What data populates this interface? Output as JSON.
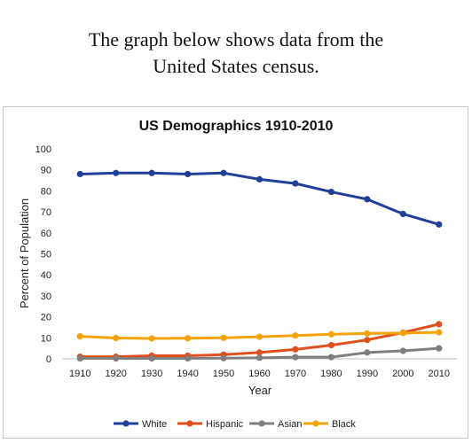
{
  "caption": {
    "line1": "The graph below shows data from the",
    "line2": "United States census."
  },
  "chart_data": {
    "type": "line",
    "title": "US Demographics 1910-2010",
    "xlabel": "Year",
    "ylabel": "Percent of Population",
    "categories": [
      "1910",
      "1920",
      "1930",
      "1940",
      "1950",
      "1960",
      "1970",
      "1980",
      "1990",
      "2000",
      "2010"
    ],
    "ylim": [
      0,
      100
    ],
    "yticks": [
      0,
      10,
      20,
      30,
      40,
      50,
      60,
      70,
      80,
      90,
      100
    ],
    "grid": false,
    "legend_position": "bottom",
    "series": [
      {
        "name": "White",
        "color": "#1f3f9a",
        "values": [
          88,
          88.5,
          88.5,
          88,
          88.5,
          85.5,
          83.5,
          79.5,
          76,
          69,
          64
        ]
      },
      {
        "name": "Hispanic",
        "color": "#e0501f",
        "values": [
          1,
          1,
          1.5,
          1.5,
          2,
          3,
          4.5,
          6.5,
          9,
          12.5,
          16.5
        ]
      },
      {
        "name": "Asian",
        "color": "#7f7f7f",
        "values": [
          0.2,
          0.2,
          0.2,
          0.2,
          0.3,
          0.5,
          0.8,
          0.8,
          3,
          3.8,
          5
        ]
      },
      {
        "name": "Black",
        "color": "#f5a30a",
        "values": [
          10.7,
          9.9,
          9.7,
          9.8,
          10,
          10.5,
          11.1,
          11.7,
          12.1,
          12.3,
          12.6
        ]
      }
    ]
  }
}
